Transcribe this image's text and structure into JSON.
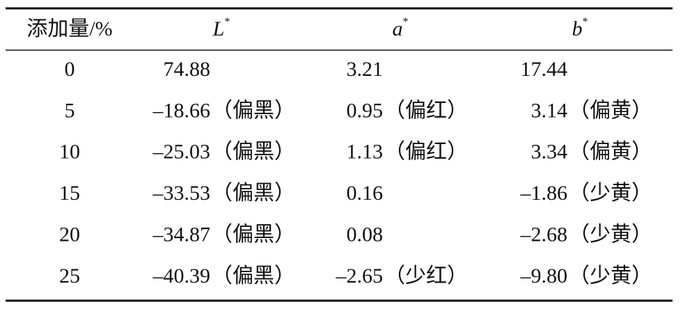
{
  "table": {
    "header": [
      {
        "text": "添加量/%"
      },
      {
        "letter": "L",
        "sup": "*"
      },
      {
        "letter": "a",
        "sup": "*"
      },
      {
        "letter": "b",
        "sup": "*"
      }
    ],
    "rows": [
      {
        "amount": "0",
        "L": {
          "value": "74.88"
        },
        "a": {
          "value": "3.21"
        },
        "b": {
          "value": "17.44"
        }
      },
      {
        "amount": "5",
        "L": {
          "value": "–18.66",
          "note": "（偏黑）"
        },
        "a": {
          "value": "0.95",
          "note": "（偏红）"
        },
        "b": {
          "value": "3.14",
          "note": "（偏黄）"
        }
      },
      {
        "amount": "10",
        "L": {
          "value": "–25.03",
          "note": "（偏黑）"
        },
        "a": {
          "value": "1.13",
          "note": "（偏红）"
        },
        "b": {
          "value": "3.34",
          "note": "（偏黄）"
        }
      },
      {
        "amount": "15",
        "L": {
          "value": "–33.53",
          "note": "（偏黑）"
        },
        "a": {
          "value": "0.16"
        },
        "b": {
          "value": "–1.86",
          "note": "（少黄）"
        }
      },
      {
        "amount": "20",
        "L": {
          "value": "–34.87",
          "note": "（偏黑）"
        },
        "a": {
          "value": "0.08"
        },
        "b": {
          "value": "–2.68",
          "note": "（少黄）"
        }
      },
      {
        "amount": "25",
        "L": {
          "value": "–40.39",
          "note": "（偏黑）"
        },
        "a": {
          "value": "–2.65",
          "note": "（少红）"
        },
        "b": {
          "value": "–9.80",
          "note": "（少黄）"
        }
      }
    ]
  }
}
